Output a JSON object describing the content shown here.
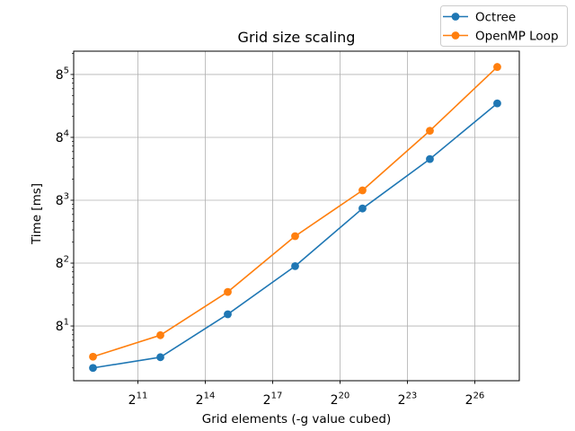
{
  "chart_data": {
    "type": "line",
    "title": "Grid size scaling",
    "xlabel": "Grid elements (-g value cubed)",
    "ylabel": "Time [ms]",
    "x_scale": "log base 2",
    "y_scale": "log base 8",
    "xlim": [
      282,
      265000000
    ],
    "ylim": [
      1.31,
      70800
    ],
    "x_ticks": {
      "base": 2,
      "exponents": [
        11,
        14,
        17,
        20,
        23,
        26
      ]
    },
    "y_ticks": {
      "base": 8,
      "exponents": [
        1,
        2,
        3,
        4,
        5
      ]
    },
    "grid": true,
    "legend_position": "upper right",
    "x": [
      512,
      4096,
      32768,
      262144,
      2097152,
      16777216,
      134217728
    ],
    "series": [
      {
        "name": "Octree",
        "color": "#1f77b4",
        "marker": "circle",
        "values": [
          2.0,
          2.85,
          11.8,
          58,
          390,
          2000,
          12600
        ]
      },
      {
        "name": "OpenMP Loop",
        "color": "#ff7f0e",
        "marker": "circle",
        "values": [
          2.9,
          5.9,
          24.7,
          156,
          710,
          5100,
          42000
        ]
      }
    ],
    "colors": {
      "grid": "#b0b0b0",
      "spine": "#000000",
      "tick": "#000000",
      "legend_border": "#cccccc",
      "background": "#ffffff"
    }
  }
}
